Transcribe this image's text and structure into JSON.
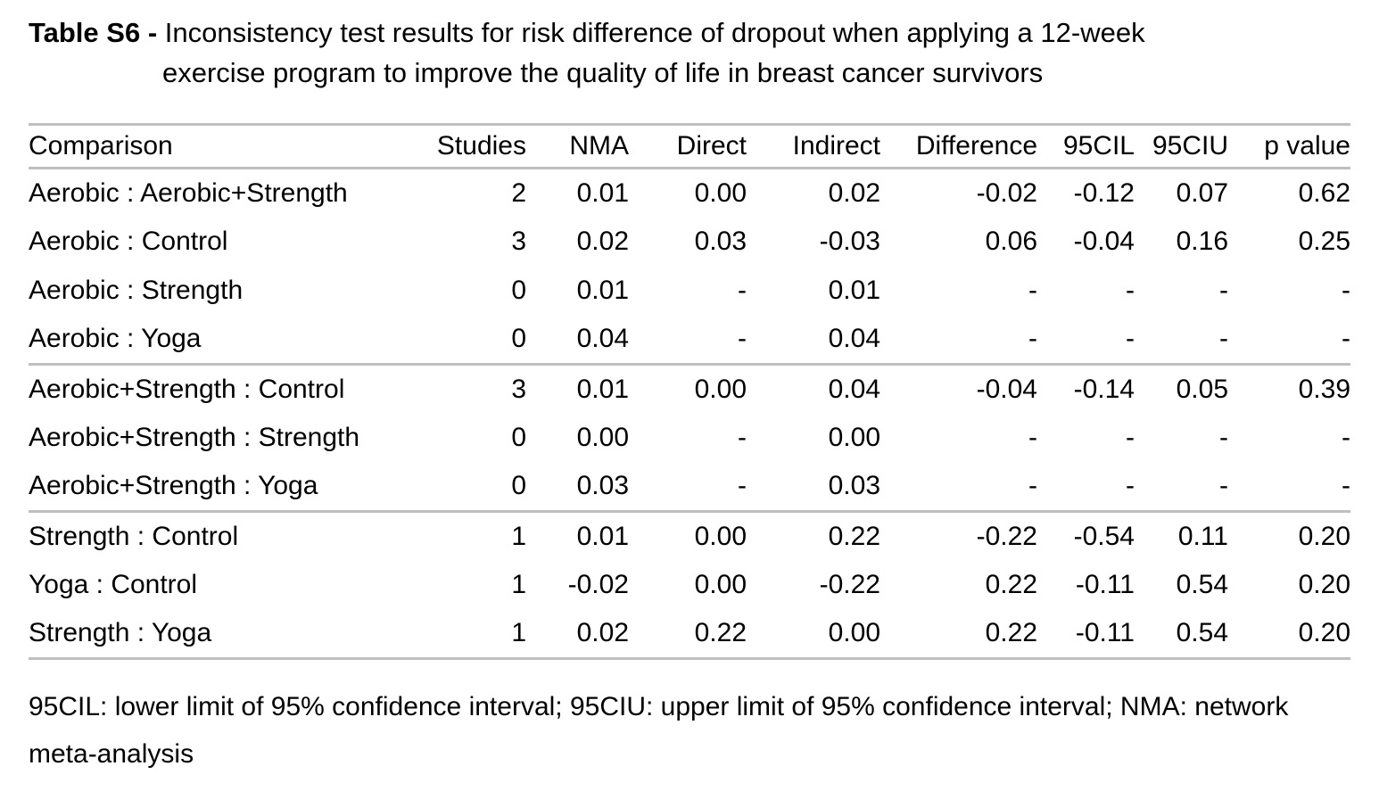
{
  "title": {
    "label": "Table S6",
    "separator": "-",
    "line1": "Inconsistency test results for risk difference of dropout when applying a 12-week",
    "line2": "exercise program to improve the quality of life in breast cancer survivors"
  },
  "table": {
    "columns": [
      "Comparison",
      "Studies",
      "NMA",
      "Direct",
      "Indirect",
      "Difference",
      "95CIL",
      "95CIU",
      "p value"
    ],
    "groups": [
      {
        "rows": [
          [
            "Aerobic : Aerobic+Strength",
            "2",
            "0.01",
            "0.00",
            "0.02",
            "-0.02",
            "-0.12",
            "0.07",
            "0.62"
          ],
          [
            "Aerobic : Control",
            "3",
            "0.02",
            "0.03",
            "-0.03",
            "0.06",
            "-0.04",
            "0.16",
            "0.25"
          ],
          [
            "Aerobic : Strength",
            "0",
            "0.01",
            "-",
            "0.01",
            "-",
            "-",
            "-",
            "-"
          ],
          [
            "Aerobic : Yoga",
            "0",
            "0.04",
            "-",
            "0.04",
            "-",
            "-",
            "-",
            "-"
          ]
        ]
      },
      {
        "rows": [
          [
            "Aerobic+Strength : Control",
            "3",
            "0.01",
            "0.00",
            "0.04",
            "-0.04",
            "-0.14",
            "0.05",
            "0.39"
          ],
          [
            "Aerobic+Strength : Strength",
            "0",
            "0.00",
            "-",
            "0.00",
            "-",
            "-",
            "-",
            "-"
          ],
          [
            "Aerobic+Strength : Yoga",
            "0",
            "0.03",
            "-",
            "0.03",
            "-",
            "-",
            "-",
            "-"
          ]
        ]
      },
      {
        "rows": [
          [
            "Strength : Control",
            "1",
            "0.01",
            "0.00",
            "0.22",
            "-0.22",
            "-0.54",
            "0.11",
            "0.20"
          ],
          [
            "Yoga : Control",
            "1",
            "-0.02",
            "0.00",
            "-0.22",
            "0.22",
            "-0.11",
            "0.54",
            "0.20"
          ],
          [
            "Strength : Yoga",
            "1",
            "0.02",
            "0.22",
            "0.00",
            "0.22",
            "-0.11",
            "0.54",
            "0.20"
          ]
        ]
      }
    ]
  },
  "footnote": {
    "text": "95CIL: lower limit of 95% confidence interval; 95CIU: upper limit of 95% confidence interval; NMA: network meta-analysis"
  },
  "colors": {
    "rule": "#bfbfbf",
    "text": "#000000",
    "background": "#ffffff"
  }
}
